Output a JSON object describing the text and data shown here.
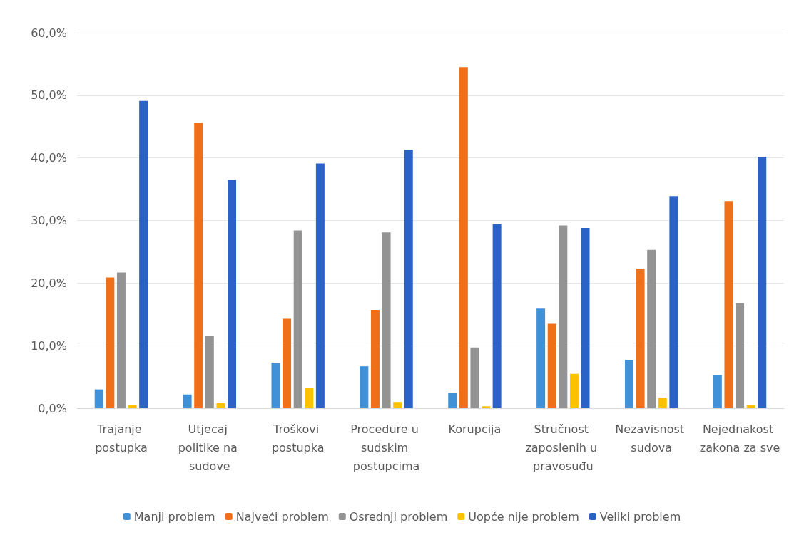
{
  "chart_data": {
    "type": "bar",
    "categories": [
      "Trajanje postupka",
      "Utjecaj politike na sudove",
      "Troškovi postupka",
      "Procedure u sudskim postupcima",
      "Korupcija",
      "Stručnost zaposlenih u pravosuđu",
      "Nezavisnost sudova",
      "Nejednakost zakona za sve"
    ],
    "series": [
      {
        "name": "Manji problem",
        "color": "#4191d8",
        "values": [
          3.0,
          2.2,
          7.3,
          6.7,
          2.5,
          15.9,
          7.7,
          5.3
        ]
      },
      {
        "name": "Najveći problem",
        "color": "#f0701a",
        "values": [
          20.9,
          45.6,
          14.3,
          15.7,
          54.5,
          13.5,
          22.3,
          33.1
        ]
      },
      {
        "name": "Osrednji problem",
        "color": "#939393",
        "values": [
          21.7,
          11.5,
          28.4,
          28.1,
          9.7,
          29.2,
          25.3,
          16.8
        ]
      },
      {
        "name": "Uopće nije problem",
        "color": "#fcc200",
        "values": [
          0.5,
          0.8,
          3.3,
          1.0,
          0.3,
          5.5,
          1.7,
          0.5
        ]
      },
      {
        "name": "Veliki problem",
        "color": "#2b62c8",
        "values": [
          49.1,
          36.5,
          39.1,
          41.3,
          29.4,
          28.8,
          33.9,
          40.2
        ]
      }
    ],
    "ylim": [
      0,
      60
    ],
    "yticks": [
      {
        "value": 0,
        "label": "0,0%"
      },
      {
        "value": 10,
        "label": "10,0%"
      },
      {
        "value": 20,
        "label": "20,0%"
      },
      {
        "value": 30,
        "label": "30,0%"
      },
      {
        "value": 40,
        "label": "40,0%"
      },
      {
        "value": 50,
        "label": "50,0%"
      },
      {
        "value": 60,
        "label": "60,0%"
      }
    ],
    "grid": "y",
    "legend": "bottom"
  }
}
